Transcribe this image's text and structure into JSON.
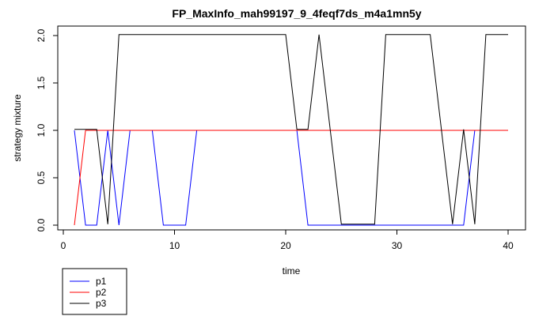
{
  "chart_data": {
    "type": "line",
    "title": "FP_MaxInfo_mah99197_9_4feqf7ds_m4a1mn5y",
    "xlabel": "time",
    "ylabel": "strategy mixture",
    "xlim": [
      1,
      40
    ],
    "ylim": [
      0,
      2
    ],
    "x_ticks": [
      0,
      10,
      20,
      30,
      40
    ],
    "y_ticks": [
      0.0,
      0.5,
      1.0,
      1.5,
      2.0
    ],
    "x_tick_labels": [
      "0",
      "10",
      "20",
      "30",
      "40"
    ],
    "y_tick_labels": [
      "0.0",
      "0.5",
      "1.0",
      "1.5",
      "2.0"
    ],
    "grid": false,
    "legend_position": "bottom-left",
    "x": [
      1,
      2,
      3,
      4,
      5,
      6,
      7,
      8,
      9,
      10,
      11,
      12,
      13,
      14,
      15,
      16,
      17,
      18,
      19,
      20,
      21,
      22,
      23,
      24,
      25,
      26,
      27,
      28,
      29,
      30,
      31,
      32,
      33,
      34,
      35,
      36,
      37,
      38,
      39,
      40
    ],
    "series": [
      {
        "name": "p1",
        "color": "#0000ff",
        "values": [
          1,
          0,
          0,
          1,
          0,
          1,
          1,
          1,
          0,
          0,
          0,
          1,
          1,
          1,
          1,
          1,
          1,
          1,
          1,
          1,
          1,
          0,
          0,
          0,
          0,
          0,
          0,
          0,
          0,
          0,
          0,
          0,
          0,
          0,
          0,
          0,
          1,
          1,
          1,
          1
        ]
      },
      {
        "name": "p2",
        "color": "#ff0000",
        "values": [
          0,
          1,
          1,
          1,
          1,
          1,
          1,
          1,
          1,
          1,
          1,
          1,
          1,
          1,
          1,
          1,
          1,
          1,
          1,
          1,
          1,
          1,
          1,
          1,
          1,
          1,
          1,
          1,
          1,
          1,
          1,
          1,
          1,
          1,
          1,
          1,
          1,
          1,
          1,
          1
        ]
      },
      {
        "name": "p3",
        "color": "#000000",
        "values": [
          1.01,
          1.01,
          1.01,
          0.01,
          2.01,
          2.01,
          2.01,
          2.01,
          2.01,
          2.01,
          2.01,
          2.01,
          2.01,
          2.01,
          2.01,
          2.01,
          2.01,
          2.01,
          2.01,
          2.01,
          1.01,
          1.01,
          2.01,
          1.01,
          0.01,
          0.01,
          0.01,
          0.01,
          2.01,
          2.01,
          2.01,
          2.01,
          2.01,
          1.01,
          0.01,
          1.01,
          0.01,
          2.01,
          2.01,
          2.01
        ]
      }
    ]
  }
}
